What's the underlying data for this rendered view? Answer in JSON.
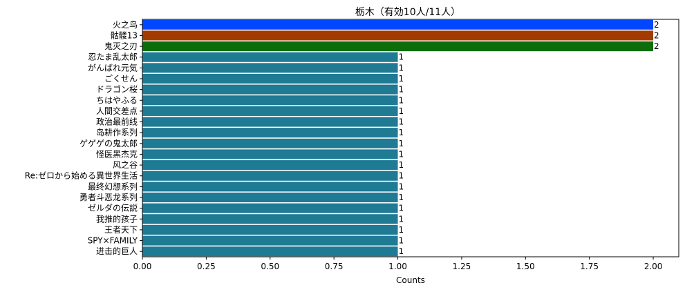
{
  "chart_data": {
    "type": "bar",
    "orientation": "horizontal",
    "title": "栃木（有効10人/11人）",
    "xlabel": "Counts",
    "ylabel": "",
    "xlim": [
      0,
      2.1
    ],
    "xticks": [
      "0.00",
      "0.25",
      "0.50",
      "0.75",
      "1.00",
      "1.25",
      "1.50",
      "1.75",
      "2.00"
    ],
    "grid": false,
    "categories": [
      "火之鸟",
      "骷髅13",
      "鬼灭之刃",
      "忍たま乱太郎",
      "がんばれ元気",
      "ごくせん",
      "ドラゴン桜",
      "ちはやふる",
      "人間交差点",
      "政治最前线",
      "岛耕作系列",
      "ゲゲゲの鬼太郎",
      "怪医黑杰克",
      "风之谷",
      "Re:ゼロから始める異世界生活",
      "最终幻想系列",
      "勇者斗恶龙系列",
      "ゼルダの伝説",
      "我推的孩子",
      "王者天下",
      "SPY×FAMILY",
      "进击的巨人"
    ],
    "values": [
      2,
      2,
      2,
      1,
      1,
      1,
      1,
      1,
      1,
      1,
      1,
      1,
      1,
      1,
      1,
      1,
      1,
      1,
      1,
      1,
      1,
      1
    ],
    "value_labels": [
      "2",
      "2",
      "2",
      "1",
      "1",
      "1",
      "1",
      "1",
      "1",
      "1",
      "1",
      "1",
      "1",
      "1",
      "1",
      "1",
      "1",
      "1",
      "1",
      "1",
      "1",
      "1"
    ],
    "colors": [
      "#0047ff",
      "#a33b00",
      "#0b6e0b",
      "#1f7a94",
      "#1f7a94",
      "#1f7a94",
      "#1f7a94",
      "#1f7a94",
      "#1f7a94",
      "#1f7a94",
      "#1f7a94",
      "#1f7a94",
      "#1f7a94",
      "#1f7a94",
      "#1f7a94",
      "#1f7a94",
      "#1f7a94",
      "#1f7a94",
      "#1f7a94",
      "#1f7a94",
      "#1f7a94",
      "#1f7a94"
    ]
  }
}
